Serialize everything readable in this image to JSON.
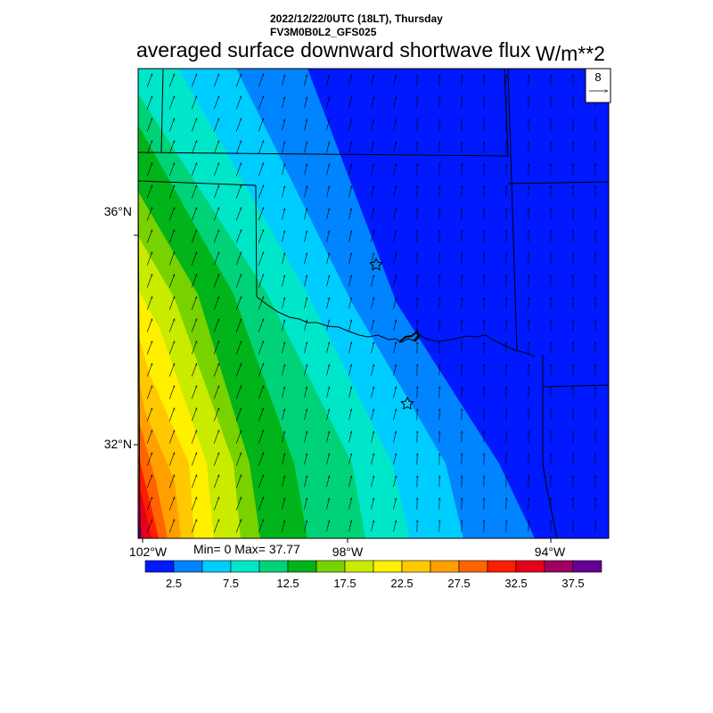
{
  "header": {
    "datetime": "2022/12/22/0UTC (18LT), Thursday",
    "model": "FV3M0B0L2_GFS025",
    "title": "averaged surface downward shortwave flux",
    "units": "W/m**2"
  },
  "map": {
    "lat_labels": [
      "36°N",
      "32°N"
    ],
    "lon_labels": [
      "102°W",
      "98°W",
      "94°W"
    ],
    "vector_reference": "8",
    "stats": "Min= 0 Max= 37.77",
    "field_pattern": "increasing from northeast (0) toward southwest (max 37.77)",
    "wind_direction": "southerly / south-southwesterly"
  },
  "colorbar": {
    "labels": [
      "2.5",
      "7.5",
      "12.5",
      "17.5",
      "22.5",
      "27.5",
      "32.5",
      "37.5"
    ],
    "colors": [
      "#0019ff",
      "#0084ff",
      "#00cdff",
      "#00e6c8",
      "#00d278",
      "#00b419",
      "#78d200",
      "#c8eb00",
      "#fff000",
      "#ffc800",
      "#ffa000",
      "#ff6400",
      "#ff1e00",
      "#e60019",
      "#a00064",
      "#640096"
    ]
  }
}
